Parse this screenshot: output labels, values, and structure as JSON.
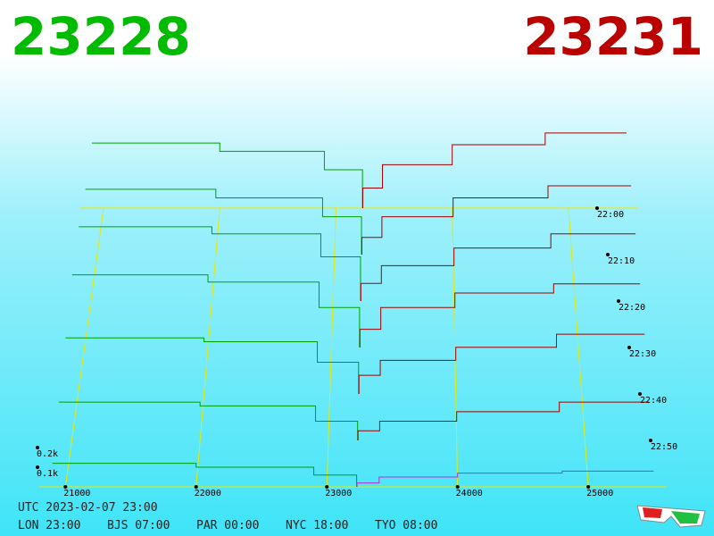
{
  "header": {
    "bid_price": "23228",
    "ask_price": "23231"
  },
  "chart_data": {
    "type": "depth3d",
    "xlim": [
      20800,
      25600
    ],
    "xticks": [
      21000,
      22000,
      23000,
      24000,
      25000
    ],
    "depth_ticks": [
      {
        "value": 0.1,
        "label": "0.1k"
      },
      {
        "value": 0.2,
        "label": "0.2k"
      }
    ],
    "time_ticks": [
      "22:00",
      "22:10",
      "22:20",
      "22:30",
      "22:40",
      "22:50"
    ],
    "bid_color": "#00a000",
    "ask_color": "#a00000",
    "front_ask_color": "#b030e0",
    "frame_color": "#e8e800",
    "bid_prices": [
      20900,
      22000,
      22900,
      23228
    ],
    "ask_prices": [
      23231,
      23400,
      24000,
      24800,
      25500
    ],
    "snapshots": [
      {
        "bids": [
          0.39,
          0.34,
          0.23,
          0
        ],
        "asks": [
          0,
          0.12,
          0.26,
          0.38,
          0.45
        ]
      },
      {
        "bids": [
          0.38,
          0.33,
          0.22,
          0
        ],
        "asks": [
          0,
          0.1,
          0.22,
          0.33,
          0.4
        ]
      },
      {
        "bids": [
          0.42,
          0.38,
          0.25,
          0
        ],
        "asks": [
          0,
          0.1,
          0.2,
          0.3,
          0.38
        ]
      },
      {
        "bids": [
          0.4,
          0.36,
          0.22,
          0
        ],
        "asks": [
          0,
          0.1,
          0.22,
          0.3,
          0.35
        ]
      },
      {
        "bids": [
          0.3,
          0.28,
          0.17,
          0
        ],
        "asks": [
          0,
          0.1,
          0.18,
          0.25,
          0.32
        ]
      },
      {
        "bids": [
          0.2,
          0.18,
          0.1,
          0
        ],
        "asks": [
          0,
          0.05,
          0.1,
          0.15,
          0.2
        ]
      },
      {
        "bids": [
          0.12,
          0.1,
          0.06,
          0
        ],
        "asks": [
          0,
          0.02,
          0.05,
          0.07,
          0.08
        ]
      }
    ]
  },
  "footer": {
    "utc": "UTC 2023-02-07 23:00",
    "clocks": [
      "LON 23:00",
      "BJS 07:00",
      "PAR 00:00",
      "NYC 18:00",
      "TYO 08:00"
    ]
  }
}
